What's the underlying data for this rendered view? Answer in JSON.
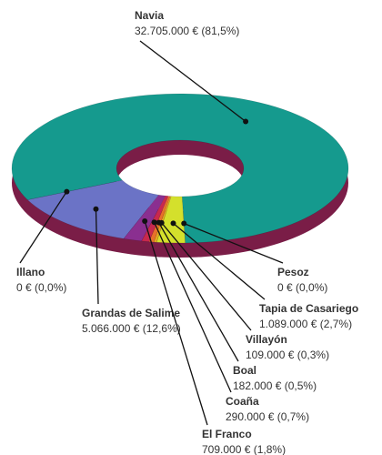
{
  "chart_data": {
    "type": "pie",
    "categories": [
      "Navia",
      "Illano",
      "Grandas de Salime",
      "El Franco",
      "Coaña",
      "Boal",
      "Villayón",
      "Tapia de Casariego",
      "Pesoz"
    ],
    "values": [
      32705000,
      0,
      5066000,
      709000,
      290000,
      182000,
      109000,
      1089000,
      0
    ],
    "value_labels": [
      "32.705.000 € (81,5%)",
      "0 € (0,0%)",
      "5.066.000 € (12,6%)",
      "709.000 € (1,8%)",
      "290.000 € (0,7%)",
      "182.000 € (0,5%)",
      "109.000 € (0,3%)",
      "1.089.000 € (2,7%)",
      "0 € (0,0%)"
    ],
    "colors": [
      "#159a8e",
      "#8fa0a8",
      "#6b73c6",
      "#8a2f90",
      "#c8284e",
      "#e8702a",
      "#e6a820",
      "#d4e02c",
      "#b8c830"
    ]
  }
}
